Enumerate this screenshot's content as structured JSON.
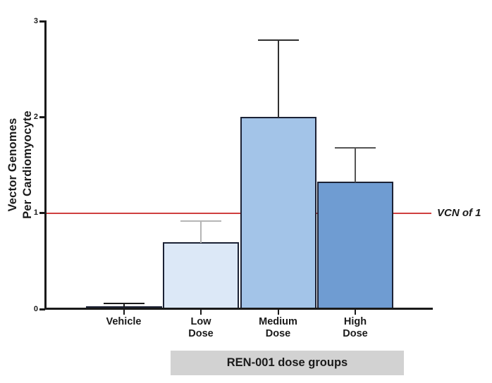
{
  "chart_data": {
    "type": "bar",
    "title": "",
    "categories": [
      "Vehicle",
      "Low Dose",
      "Medium Dose",
      "High Dose"
    ],
    "category_label_lines": [
      [
        "Vehicle"
      ],
      [
        "Low",
        "Dose"
      ],
      [
        "Medium",
        "Dose"
      ],
      [
        "High",
        "Dose"
      ]
    ],
    "values": [
      0.03,
      0.7,
      2.0,
      1.33
    ],
    "errors_plus": [
      0.03,
      0.22,
      0.8,
      0.35
    ],
    "bar_colors": [
      "#0d0d0d",
      "#dce8f7",
      "#a3c4e8",
      "#6f9cd2"
    ],
    "bar_border_color": "#1c2235",
    "error_colors": [
      "#1a1a1a",
      "#b5b5b5",
      "#2f2f2f",
      "#555555"
    ],
    "ylabel_lines": [
      "Vector Genomes",
      "Per Cardiomyocyte"
    ],
    "yticks": [
      0,
      1,
      2,
      3
    ],
    "ylim": [
      0,
      3
    ],
    "grid": "off",
    "legend": "none",
    "reference_line": {
      "value": 1,
      "label": "VCN of 1",
      "color": "#cf3f3f"
    },
    "group_label": "REN-001 dose groups",
    "group_label_bg": "#d2d2d2",
    "axis_color": "#1a1a1a"
  }
}
